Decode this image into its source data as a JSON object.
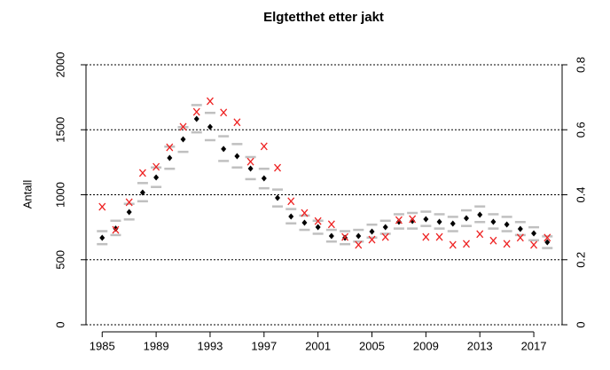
{
  "chart_data": {
    "type": "scatter",
    "title": "Elgtetthet etter jakt",
    "y_label": "Antall",
    "x": [
      1985,
      1986,
      1987,
      1988,
      1989,
      1990,
      1991,
      1992,
      1993,
      1994,
      1995,
      1996,
      1997,
      1998,
      1999,
      2000,
      2001,
      2002,
      2003,
      2004,
      2005,
      2006,
      2007,
      2008,
      2009,
      2010,
      2011,
      2012,
      2013,
      2014,
      2015,
      2016,
      2017,
      2018
    ],
    "series": [
      {
        "color": "#c0c0c0",
        "marker": "dash",
        "values": [
          720,
          800,
          930,
          1090,
          1210,
          1370,
          1520,
          1690,
          1630,
          1450,
          1390,
          1290,
          1200,
          1040,
          890,
          840,
          800,
          730,
          720,
          730,
          770,
          800,
          850,
          860,
          870,
          850,
          830,
          880,
          910,
          850,
          830,
          790,
          750,
          680
        ]
      },
      {
        "color": "#c0c0c0",
        "marker": "dash",
        "values": [
          620,
          690,
          810,
          950,
          1060,
          1200,
          1330,
          1480,
          1420,
          1260,
          1210,
          1120,
          1050,
          910,
          780,
          730,
          700,
          640,
          620,
          640,
          670,
          700,
          740,
          740,
          760,
          740,
          720,
          760,
          790,
          740,
          720,
          690,
          650,
          590
        ]
      },
      {
        "color": "#000000",
        "marker": "diamond",
        "values": [
          669,
          740,
          867,
          1017,
          1133,
          1283,
          1427,
          1584,
          1522,
          1352,
          1297,
          1201,
          1126,
          976,
          833,
          785,
          751,
          683,
          669,
          683,
          717,
          751,
          792,
          799,
          812,
          792,
          778,
          819,
          846,
          792,
          771,
          737,
          703,
          635
        ]
      },
      {
        "color": "#ee2222",
        "marker": "x",
        "axis": "y2",
        "values": [
          0.363,
          0.292,
          0.377,
          0.467,
          0.486,
          0.546,
          0.609,
          0.655,
          0.688,
          0.653,
          0.623,
          0.502,
          0.549,
          0.483,
          0.38,
          0.344,
          0.319,
          0.309,
          0.27,
          0.246,
          0.262,
          0.27,
          0.322,
          0.325,
          0.27,
          0.27,
          0.246,
          0.249,
          0.279,
          0.259,
          0.249,
          0.268,
          0.246,
          0.268
        ]
      }
    ],
    "xlim": [
      1983.8,
      2019.1
    ],
    "xticks": [
      1985,
      1989,
      1993,
      1997,
      2001,
      2005,
      2009,
      2013,
      2017
    ],
    "ylim": [
      0,
      2000
    ],
    "yticks": [
      0,
      500,
      1000,
      1500,
      2000
    ],
    "y2lim": [
      0,
      0.8
    ],
    "y2ticks": [
      0,
      0.2,
      0.4,
      0.6,
      0.8
    ],
    "grid": true
  }
}
